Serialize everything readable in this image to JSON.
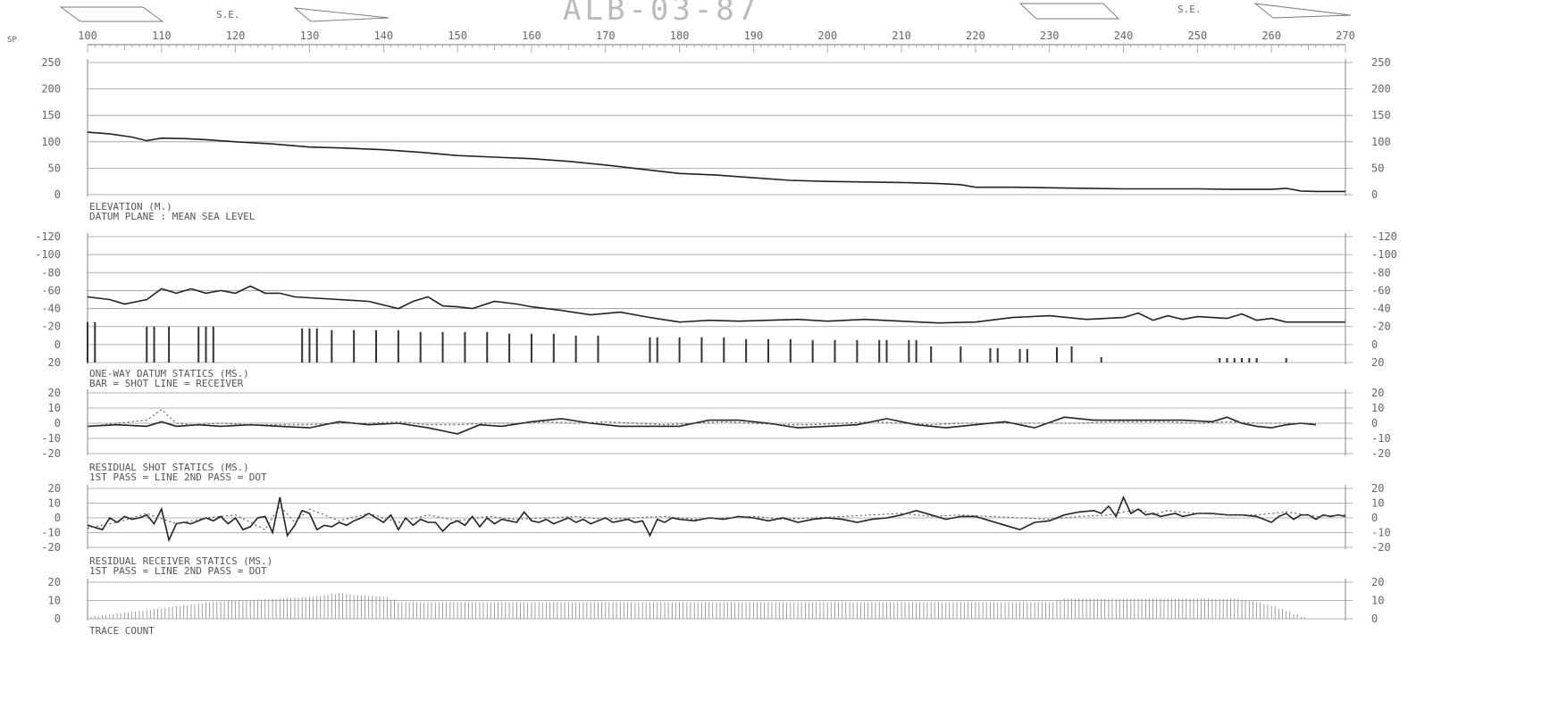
{
  "title": "ALB-03-87",
  "sp_label": "SP",
  "se_labels": [
    "S.E.",
    "S.E."
  ],
  "chart_data": [
    {
      "type": "line",
      "id": "elevation",
      "label_lines": [
        "ELEVATION (M.)",
        "DATUM PLANE : MEAN SEA LEVEL"
      ],
      "ylim": [
        0,
        250
      ],
      "yticks": [
        "250",
        "200",
        "150",
        "100",
        "50",
        "0"
      ],
      "x_ticks": [
        "100",
        "110",
        "120",
        "130",
        "140",
        "150",
        "160",
        "170",
        "180",
        "190",
        "200",
        "210",
        "220",
        "230",
        "240",
        "250",
        "260",
        "270"
      ],
      "series": [
        {
          "style": "solid",
          "x": [
            100,
            103,
            106,
            108,
            110,
            113,
            116,
            120,
            125,
            130,
            135,
            140,
            145,
            150,
            155,
            160,
            165,
            170,
            175,
            180,
            185,
            190,
            195,
            200,
            205,
            210,
            215,
            218,
            220,
            225,
            230,
            235,
            240,
            245,
            250,
            255,
            260,
            262,
            264,
            266,
            268,
            270
          ],
          "values": [
            118,
            115,
            109,
            102,
            107,
            106,
            104,
            100,
            96,
            90,
            88,
            85,
            80,
            74,
            71,
            68,
            63,
            56,
            48,
            40,
            37,
            32,
            27,
            25,
            24,
            23,
            21,
            19,
            14,
            14,
            13,
            12,
            11,
            11,
            11,
            10,
            10,
            12,
            7,
            6,
            6,
            6
          ]
        }
      ]
    },
    {
      "type": "line",
      "id": "datum_statics",
      "label_lines": [
        "ONE-WAY DATUM STATICS (MS.)",
        "BAR = SHOT   LINE = RECEIVER"
      ],
      "ylim": [
        20,
        -120
      ],
      "yticks": [
        "-120",
        "-100",
        "-80",
        "-60",
        "-40",
        "-20",
        "0",
        "20"
      ],
      "series": [
        {
          "style": "solid",
          "name": "LINE = RECEIVER",
          "x": [
            100,
            103,
            105,
            108,
            110,
            112,
            114,
            116,
            118,
            120,
            122,
            124,
            126,
            128,
            130,
            134,
            138,
            142,
            144,
            146,
            148,
            150,
            152,
            155,
            158,
            160,
            164,
            168,
            172,
            176,
            180,
            184,
            188,
            192,
            196,
            200,
            205,
            210,
            215,
            220,
            225,
            230,
            235,
            240,
            242,
            244,
            246,
            248,
            250,
            254,
            256,
            258,
            260,
            262,
            265,
            270
          ],
          "values": [
            -53,
            -50,
            -45,
            -50,
            -62,
            -57,
            -62,
            -57,
            -60,
            -57,
            -65,
            -57,
            -57,
            -53,
            -52,
            -50,
            -48,
            -40,
            -48,
            -53,
            -43,
            -42,
            -40,
            -48,
            -45,
            -42,
            -38,
            -33,
            -36,
            -30,
            -25,
            -27,
            -26,
            -27,
            -28,
            -26,
            -28,
            -26,
            -24,
            -25,
            -30,
            -32,
            -28,
            -30,
            -35,
            -27,
            -32,
            -28,
            -31,
            -29,
            -34,
            -27,
            -29,
            -25,
            -25,
            -25
          ]
        },
        {
          "style": "bar",
          "name": "BAR = SHOT",
          "x": [
            100,
            101,
            108,
            109,
            111,
            115,
            116,
            117,
            129,
            130,
            131,
            133,
            136,
            139,
            142,
            145,
            148,
            151,
            154,
            157,
            160,
            163,
            166,
            169,
            176,
            177,
            180,
            183,
            186,
            189,
            192,
            195,
            198,
            201,
            204,
            207,
            208,
            211,
            212,
            214,
            218,
            222,
            223,
            226,
            227,
            231,
            233,
            237,
            253,
            254,
            255,
            256,
            257,
            258,
            262
          ],
          "values": [
            -25,
            -25,
            -20,
            -20,
            -20,
            -20,
            -20,
            -20,
            -18,
            -18,
            -18,
            -16,
            -16,
            -16,
            -16,
            -14,
            -14,
            -14,
            -14,
            -12,
            -12,
            -12,
            -10,
            -10,
            -8,
            -8,
            -8,
            -8,
            -8,
            -6,
            -6,
            -6,
            -5,
            -5,
            -5,
            -5,
            -5,
            -5,
            -5,
            2,
            2,
            4,
            4,
            5,
            5,
            3,
            2,
            14,
            15,
            15,
            15,
            15,
            15,
            15,
            15
          ]
        }
      ]
    },
    {
      "type": "line",
      "id": "residual_shot",
      "label_lines": [
        "RESIDUAL SHOT STATICS (MS.)",
        "1ST PASS = LINE 2ND PASS = DOT"
      ],
      "ylim": [
        -20,
        20
      ],
      "yticks": [
        "20",
        "10",
        "0",
        "-10",
        "-20"
      ],
      "series": [
        {
          "style": "solid",
          "name": "1ST PASS = LINE",
          "x": [
            100,
            104,
            108,
            110,
            112,
            115,
            118,
            122,
            126,
            130,
            134,
            138,
            142,
            146,
            150,
            153,
            156,
            160,
            164,
            168,
            172,
            176,
            180,
            184,
            188,
            192,
            196,
            200,
            204,
            208,
            212,
            216,
            220,
            224,
            228,
            232,
            236,
            240,
            244,
            248,
            252,
            254,
            256,
            258,
            260,
            262,
            264,
            266
          ],
          "values": [
            -2,
            -1,
            -2,
            1,
            -2,
            -1,
            -2,
            -1,
            -2,
            -3,
            1,
            -1,
            0,
            -3,
            -7,
            -1,
            -2,
            1,
            3,
            0,
            -2,
            -2,
            -2,
            2,
            2,
            0,
            -3,
            -2,
            -1,
            3,
            -1,
            -3,
            -1,
            1,
            -3,
            4,
            2,
            2,
            2,
            2,
            1,
            4,
            0,
            -2,
            -3,
            -1,
            0,
            -1
          ]
        },
        {
          "style": "dotted",
          "name": "2ND PASS = DOT",
          "x": [
            100,
            104,
            108,
            110,
            112,
            114,
            118,
            122,
            126,
            130,
            134,
            138,
            142,
            146,
            150,
            154,
            158,
            162,
            166,
            170,
            174,
            178,
            182,
            186,
            190,
            194,
            198,
            202,
            206,
            210,
            214,
            218,
            222,
            226,
            230,
            234,
            238,
            242,
            246,
            250,
            254,
            258,
            262,
            266
          ],
          "values": [
            -2,
            0,
            2,
            9,
            0,
            -1,
            0,
            -1,
            -1,
            -1,
            0,
            0,
            1,
            -1,
            -1,
            0,
            0,
            1,
            0,
            1,
            0,
            -1,
            0,
            1,
            0,
            -1,
            -1,
            0,
            1,
            0,
            -1,
            0,
            0,
            0,
            0,
            0,
            1,
            1,
            1,
            0,
            1,
            0,
            0,
            0
          ]
        }
      ]
    },
    {
      "type": "line",
      "id": "residual_receiver",
      "label_lines": [
        "RESIDUAL RECEIVER STATICS (MS.)",
        "1ST PASS = LINE 2ND PASS = DOT"
      ],
      "ylim": [
        -20,
        20
      ],
      "yticks": [
        "20",
        "10",
        "0",
        "-10",
        "-20"
      ],
      "series": [
        {
          "style": "solid",
          "name": "1ST PASS = LINE",
          "x": [
            100,
            102,
            103,
            104,
            105,
            106,
            107,
            108,
            109,
            110,
            111,
            112,
            113,
            114,
            115,
            116,
            117,
            118,
            119,
            120,
            121,
            122,
            123,
            124,
            125,
            126,
            127,
            128,
            129,
            130,
            131,
            132,
            133,
            134,
            135,
            136,
            137,
            138,
            139,
            140,
            141,
            142,
            143,
            144,
            145,
            146,
            147,
            148,
            149,
            150,
            151,
            152,
            153,
            154,
            155,
            156,
            157,
            158,
            159,
            160,
            161,
            162,
            163,
            164,
            165,
            166,
            167,
            168,
            169,
            170,
            171,
            172,
            173,
            174,
            175,
            176,
            177,
            178,
            179,
            180,
            182,
            184,
            186,
            188,
            190,
            192,
            194,
            196,
            198,
            200,
            202,
            204,
            206,
            208,
            210,
            212,
            214,
            216,
            218,
            220,
            222,
            224,
            226,
            228,
            230,
            232,
            234,
            236,
            237,
            238,
            239,
            240,
            241,
            242,
            243,
            244,
            245,
            246,
            247,
            248,
            249,
            250,
            252,
            254,
            256,
            258,
            260,
            261,
            262,
            263,
            264,
            265,
            266,
            267,
            268,
            269,
            270
          ],
          "values": [
            -5,
            -8,
            0,
            -3,
            1,
            -1,
            0,
            2,
            -4,
            6,
            -15,
            -4,
            -3,
            -4,
            -2,
            0,
            -2,
            1,
            -4,
            0,
            -8,
            -6,
            0,
            1,
            -10,
            14,
            -12,
            -5,
            5,
            3,
            -8,
            -5,
            -6,
            -3,
            -5,
            -2,
            0,
            3,
            0,
            -3,
            2,
            -8,
            0,
            -5,
            -1,
            -3,
            -3,
            -9,
            -4,
            -2,
            -5,
            1,
            -6,
            0,
            -4,
            -1,
            -2,
            -3,
            4,
            -2,
            -3,
            -1,
            -4,
            -2,
            0,
            -3,
            -1,
            -4,
            -2,
            0,
            -3,
            -2,
            -1,
            -3,
            -2,
            -12,
            -1,
            -3,
            0,
            -1,
            -2,
            0,
            -1,
            1,
            0,
            -2,
            0,
            -3,
            -1,
            0,
            -1,
            -3,
            -1,
            0,
            2,
            5,
            2,
            -1,
            1,
            1,
            -2,
            -5,
            -8,
            -3,
            -2,
            2,
            4,
            5,
            3,
            8,
            1,
            14,
            3,
            6,
            2,
            3,
            1,
            2,
            3,
            1,
            2,
            3,
            3,
            2,
            2,
            1,
            -3,
            1,
            3,
            -1,
            2,
            2,
            -1,
            2,
            1,
            2,
            1
          ]
        },
        {
          "style": "dotted",
          "name": "2ND PASS = DOT",
          "x": [
            100,
            104,
            108,
            112,
            116,
            120,
            124,
            126,
            128,
            130,
            134,
            138,
            142,
            146,
            150,
            154,
            158,
            162,
            166,
            170,
            174,
            178,
            182,
            186,
            190,
            194,
            198,
            202,
            206,
            210,
            214,
            218,
            222,
            226,
            230,
            234,
            238,
            242,
            244,
            246,
            250,
            254,
            258,
            262,
            266,
            270
          ],
          "values": [
            -7,
            -3,
            3,
            -4,
            0,
            2,
            -8,
            8,
            -3,
            6,
            -2,
            3,
            -3,
            2,
            -2,
            1,
            -1,
            0,
            1,
            -1,
            0,
            1,
            -1,
            0,
            1,
            -1,
            0,
            1,
            2,
            3,
            1,
            2,
            1,
            0,
            -1,
            1,
            2,
            6,
            2,
            5,
            3,
            2,
            2,
            4,
            1,
            2
          ]
        }
      ]
    },
    {
      "type": "bar",
      "id": "trace_count",
      "label_lines": [
        "TRACE COUNT"
      ],
      "ylim": [
        0,
        20
      ],
      "yticks": [
        "20",
        "10",
        "0"
      ],
      "series": [
        {
          "style": "bars",
          "x": [
            100,
            102,
            104,
            106,
            108,
            110,
            112,
            116,
            120,
            126,
            130,
            134,
            136,
            140,
            142,
            145,
            150,
            160,
            180,
            200,
            220,
            230,
            232,
            240,
            250,
            255,
            258,
            260,
            262,
            264
          ],
          "values": [
            1,
            2,
            3,
            4,
            5,
            6,
            7,
            9,
            10,
            11,
            12,
            14,
            13,
            12,
            9,
            9,
            9,
            9,
            9,
            9,
            9,
            9,
            11,
            11,
            11,
            11,
            9,
            7,
            4,
            1
          ]
        }
      ]
    }
  ]
}
